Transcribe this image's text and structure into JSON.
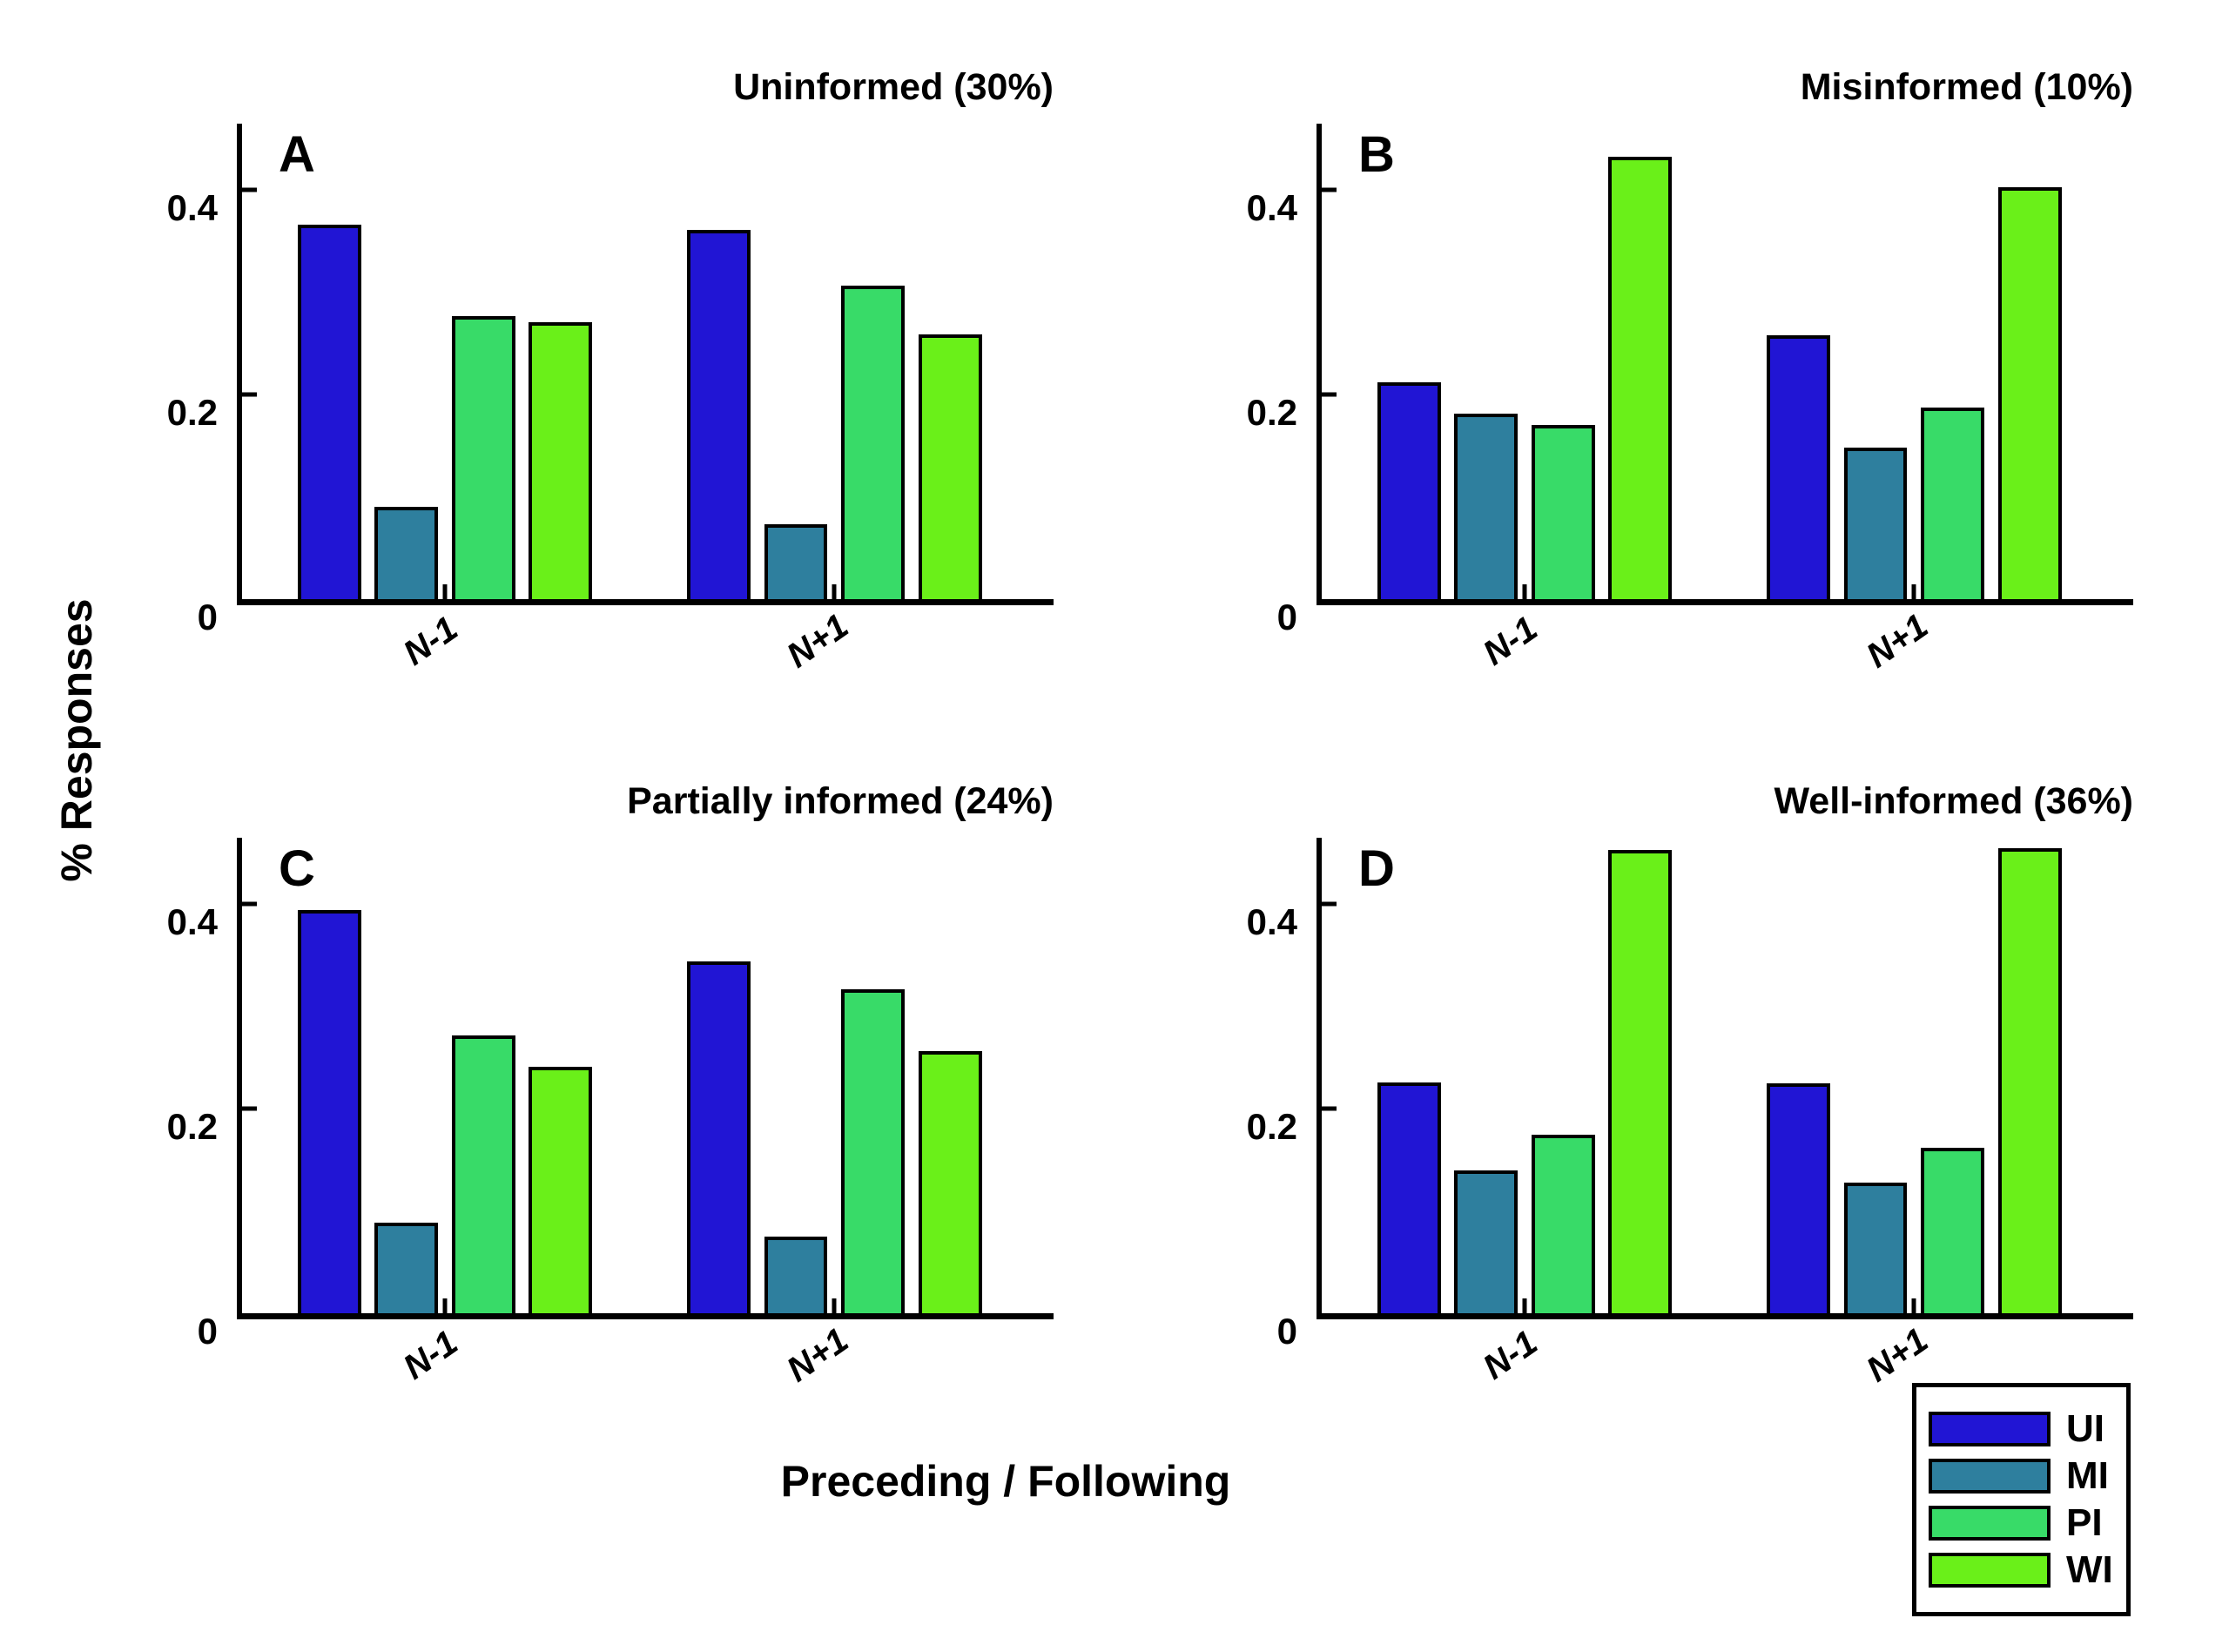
{
  "figure": {
    "ylabel": "% Responses",
    "xlabel": "Preceding / Following",
    "ytick_labels": [
      "0",
      "0.2",
      "0.4"
    ],
    "background": "#ffffff",
    "axis_color": "#000000"
  },
  "legend": {
    "items": [
      {
        "label": "UI",
        "color": "#2115d4"
      },
      {
        "label": "MI",
        "color": "#2e7f9e"
      },
      {
        "label": "PI",
        "color": "#38db68"
      },
      {
        "label": "WI",
        "color": "#6af019"
      }
    ]
  },
  "chart_data": {
    "type": "bar",
    "layout_hint": "2x2 panel grid, grouped bars, open axes, legend bottom-right",
    "ylim": [
      0,
      0.465
    ],
    "yticks": [
      0,
      0.2,
      0.4
    ],
    "categories": [
      "N-1",
      "N+1"
    ],
    "series_names": [
      "UI",
      "MI",
      "PI",
      "WI"
    ],
    "panels": [
      {
        "label": "A",
        "title": "Uninformed (30%)",
        "series": [
          {
            "name": "UI",
            "values": [
              0.366,
              0.361
            ]
          },
          {
            "name": "MI",
            "values": [
              0.09,
              0.073
            ]
          },
          {
            "name": "PI",
            "values": [
              0.277,
              0.307
            ]
          },
          {
            "name": "WI",
            "values": [
              0.271,
              0.259
            ]
          }
        ]
      },
      {
        "label": "B",
        "title": "Misinformed (10%)",
        "series": [
          {
            "name": "UI",
            "values": [
              0.212,
              0.258
            ]
          },
          {
            "name": "MI",
            "values": [
              0.181,
              0.148
            ]
          },
          {
            "name": "PI",
            "values": [
              0.17,
              0.187
            ]
          },
          {
            "name": "WI",
            "values": [
              0.433,
              0.403
            ]
          }
        ]
      },
      {
        "label": "C",
        "title": "Partially informed (24%)",
        "series": [
          {
            "name": "UI",
            "values": [
              0.394,
              0.344
            ]
          },
          {
            "name": "MI",
            "values": [
              0.089,
              0.075
            ]
          },
          {
            "name": "PI",
            "values": [
              0.272,
              0.317
            ]
          },
          {
            "name": "WI",
            "values": [
              0.241,
              0.256
            ]
          }
        ]
      },
      {
        "label": "D",
        "title": "Well-informed (36%)",
        "series": [
          {
            "name": "UI",
            "values": [
              0.226,
              0.225
            ]
          },
          {
            "name": "MI",
            "values": [
              0.14,
              0.128
            ]
          },
          {
            "name": "PI",
            "values": [
              0.175,
              0.162
            ]
          },
          {
            "name": "WI",
            "values": [
              0.453,
              0.455
            ]
          }
        ]
      }
    ]
  }
}
